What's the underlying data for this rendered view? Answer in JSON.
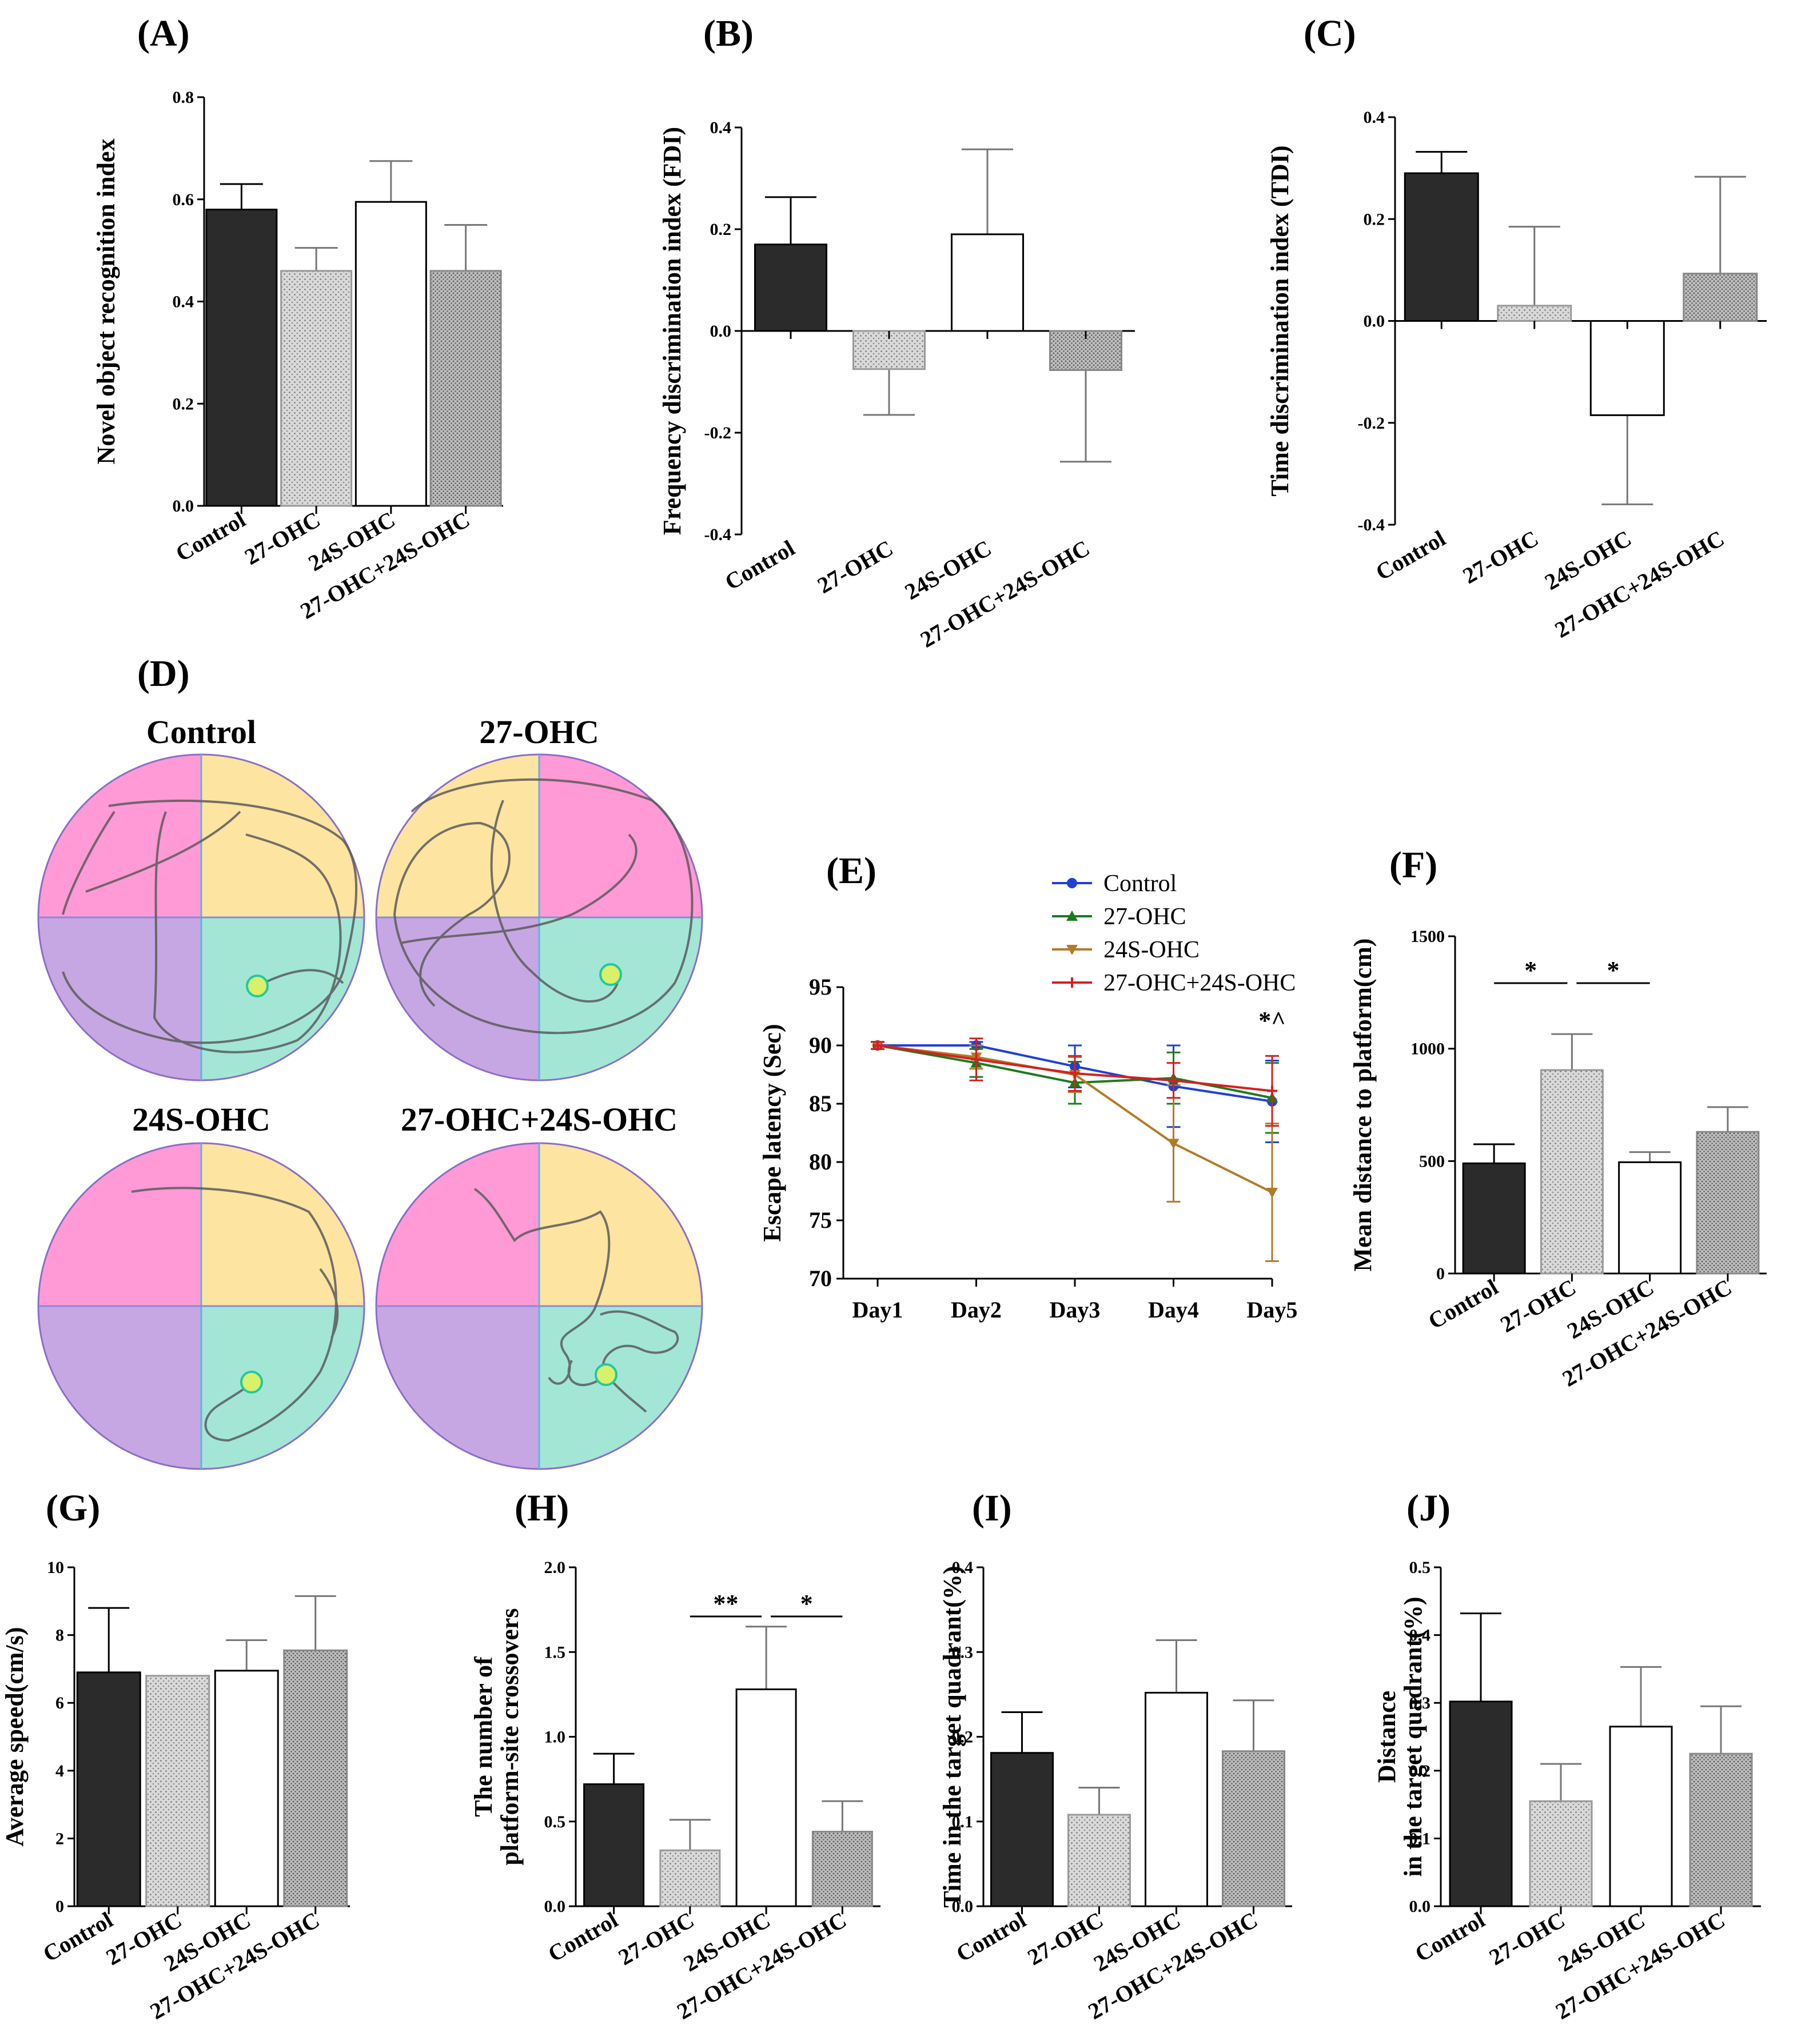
{
  "colors": {
    "control": "#2b2b2b",
    "dotted": "#d0d0d0",
    "white": "#ffffff",
    "dense": "#c6c6c6",
    "line_control": "#1f3fd6",
    "line_27": "#1e7a1e",
    "line_24s": "#b27b2a",
    "line_combo": "#d42020",
    "quad_pink": "#ff9ad6",
    "quad_yellow": "#fde4a1",
    "quad_purple": "#c6a7e3",
    "quad_teal": "#a3e6d6"
  },
  "groups": [
    "Control",
    "27-OHC",
    "24S-OHC",
    "27-OHC+24S-OHC"
  ],
  "pools": {
    "panel_label": "(D)",
    "titles": [
      "Control",
      "27-OHC",
      "24S-OHC",
      "27-OHC+24S-OHC"
    ]
  },
  "chart_data": [
    {
      "id": "A",
      "panel_label": "(A)",
      "type": "bar",
      "categories": [
        "Control",
        "27-OHC",
        "24S-OHC",
        "27-OHC+24S-OHC"
      ],
      "values": [
        0.58,
        0.46,
        0.595,
        0.46
      ],
      "errors": [
        0.05,
        0.045,
        0.08,
        0.09
      ],
      "ylabel": "Novel object recognition index",
      "ylim": [
        0,
        0.8
      ],
      "yticks": [
        0.0,
        0.2,
        0.4,
        0.6,
        0.8
      ],
      "tick_labels": [
        "0.0",
        "0.2",
        "0.4",
        "0.6",
        "0.8"
      ]
    },
    {
      "id": "B",
      "panel_label": "(B)",
      "type": "bar",
      "categories": [
        "Control",
        "27-OHC",
        "24S-OHC",
        "27-OHC+24S-OHC"
      ],
      "values": [
        0.17,
        -0.075,
        0.19,
        -0.077
      ],
      "errors": [
        0.093,
        0.09,
        0.167,
        0.18
      ],
      "ylabel": "Frequency discrimination index (FDI)",
      "ylim": [
        -0.4,
        0.4
      ],
      "yticks": [
        -0.4,
        -0.2,
        0.0,
        0.2,
        0.4
      ],
      "tick_labels": [
        "-0.4",
        "-0.2",
        "0.0",
        "0.2",
        "0.4"
      ]
    },
    {
      "id": "C",
      "panel_label": "(C)",
      "type": "bar",
      "categories": [
        "Control",
        "27-OHC",
        "24S-OHC",
        "27-OHC+24S-OHC"
      ],
      "values": [
        0.29,
        0.03,
        -0.185,
        0.093
      ],
      "errors": [
        0.042,
        0.155,
        0.175,
        0.19
      ],
      "ylabel": "Time discrimination index (TDI)",
      "ylim": [
        -0.4,
        0.4
      ],
      "yticks": [
        -0.4,
        -0.2,
        0.0,
        0.2,
        0.4
      ],
      "tick_labels": [
        "-0.4",
        "-0.2",
        "0.0",
        "0.2",
        "0.4"
      ]
    },
    {
      "id": "E",
      "panel_label": "(E)",
      "type": "line",
      "x": [
        "Day1",
        "Day2",
        "Day3",
        "Day4",
        "Day5"
      ],
      "series": [
        {
          "name": "Control",
          "values": [
            90,
            90,
            88.2,
            86.5,
            85.2
          ],
          "errors": [
            0.3,
            0.3,
            1.8,
            3.5,
            3.5
          ]
        },
        {
          "name": "27-OHC",
          "values": [
            90,
            88.5,
            86.8,
            87.2,
            85.5
          ],
          "errors": [
            0.3,
            1.2,
            1.8,
            2.2,
            3.0
          ]
        },
        {
          "name": "24S-OHC",
          "values": [
            90,
            89.0,
            87.5,
            81.6,
            77.4
          ],
          "errors": [
            0.3,
            1.0,
            1.5,
            5.0,
            5.9
          ]
        },
        {
          "name": "27-OHC+24S-OHC",
          "values": [
            90,
            88.8,
            87.6,
            87.0,
            86.1
          ],
          "errors": [
            0.3,
            1.8,
            1.5,
            1.5,
            3.0
          ]
        }
      ],
      "ylabel": "Escape latency (Sec)",
      "ylim": [
        70,
        95
      ],
      "yticks": [
        70,
        75,
        80,
        85,
        90,
        95
      ],
      "tick_labels": [
        "70",
        "75",
        "80",
        "85",
        "90",
        "95"
      ],
      "annotation": "*^"
    },
    {
      "id": "F",
      "panel_label": "(F)",
      "type": "bar",
      "categories": [
        "Control",
        "27-OHC",
        "24S-OHC",
        "27-OHC+24S-OHC"
      ],
      "values": [
        490,
        905,
        495,
        630
      ],
      "errors": [
        85,
        160,
        45,
        110
      ],
      "ylabel": "Mean distance to platform(cm)",
      "ylim": [
        0,
        1500
      ],
      "yticks": [
        0,
        500,
        1000,
        1500
      ],
      "tick_labels": [
        "0",
        "500",
        "1000",
        "1500"
      ],
      "sig": [
        {
          "from": 0,
          "to": 1,
          "label": "*"
        },
        {
          "from": 1,
          "to": 2,
          "label": "*"
        }
      ]
    },
    {
      "id": "G",
      "panel_label": "(G)",
      "type": "bar",
      "categories": [
        "Control",
        "27-OHC",
        "24S-OHC",
        "27-OHC+24S-OHC"
      ],
      "values": [
        6.9,
        6.8,
        6.95,
        7.55
      ],
      "errors": [
        1.9,
        0.0,
        0.9,
        1.6
      ],
      "ylabel": "Average speed(cm/s)",
      "ylim": [
        0,
        10
      ],
      "yticks": [
        0,
        2,
        4,
        6,
        8,
        10
      ],
      "tick_labels": [
        "0",
        "2",
        "4",
        "6",
        "8",
        "10"
      ]
    },
    {
      "id": "H",
      "panel_label": "(H)",
      "type": "bar",
      "categories": [
        "Control",
        "27-OHC",
        "24S-OHC",
        "27-OHC+24S-OHC"
      ],
      "values": [
        0.72,
        0.33,
        1.28,
        0.44
      ],
      "errors": [
        0.18,
        0.18,
        0.37,
        0.18
      ],
      "ylabel_lines": [
        "The number of",
        "platform-site crossovers"
      ],
      "ylim": [
        0,
        2.0
      ],
      "yticks": [
        0.0,
        0.5,
        1.0,
        1.5,
        2.0
      ],
      "tick_labels": [
        "0.0",
        "0.5",
        "1.0",
        "1.5",
        "2.0"
      ],
      "sig": [
        {
          "from": 1,
          "to": 2,
          "label": "**"
        },
        {
          "from": 2,
          "to": 3,
          "label": "*"
        }
      ]
    },
    {
      "id": "I",
      "panel_label": "(I)",
      "type": "bar",
      "categories": [
        "Control",
        "27-OHC",
        "24S-OHC",
        "27-OHC+24S-OHC"
      ],
      "values": [
        0.181,
        0.108,
        0.252,
        0.183
      ],
      "errors": [
        0.048,
        0.032,
        0.062,
        0.06
      ],
      "ylabel": "Time in the target quadrant(%)",
      "ylim": [
        0,
        0.4
      ],
      "yticks": [
        0.0,
        0.1,
        0.2,
        0.3,
        0.4
      ],
      "tick_labels": [
        "0.0",
        "0.1",
        "0.2",
        "0.3",
        "0.4"
      ]
    },
    {
      "id": "J",
      "panel_label": "(J)",
      "type": "bar",
      "categories": [
        "Control",
        "27-OHC",
        "24S-OHC",
        "27-OHC+24S-OHC"
      ],
      "values": [
        0.302,
        0.155,
        0.265,
        0.225
      ],
      "errors": [
        0.13,
        0.055,
        0.088,
        0.07
      ],
      "ylabel_lines": [
        "Distance",
        "in the target quadrant(%)"
      ],
      "ylim": [
        0,
        0.5
      ],
      "yticks": [
        0.0,
        0.1,
        0.2,
        0.3,
        0.4,
        0.5
      ],
      "tick_labels": [
        "0.0",
        "0.1",
        "0.2",
        "0.3",
        "0.4",
        "0.5"
      ]
    }
  ]
}
